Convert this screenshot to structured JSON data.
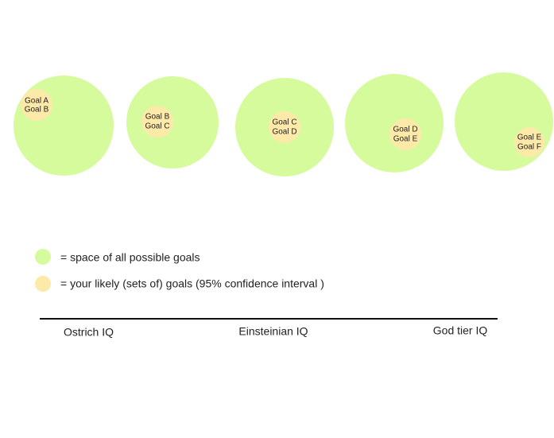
{
  "circles": [
    {
      "labels": [
        "Goal A",
        "Goal B"
      ]
    },
    {
      "labels": [
        "Goal B",
        "Goal C"
      ]
    },
    {
      "labels": [
        "Goal C",
        "Goal D"
      ]
    },
    {
      "labels": [
        "Goal D",
        "Goal E"
      ]
    },
    {
      "labels": [
        "Goal E",
        "Goal F"
      ]
    }
  ],
  "legend": [
    "= space of all possible goals",
    "= your likely (sets of) goals (95% confidence interval )"
  ],
  "axis": {
    "labels": [
      "Ostrich IQ",
      "Einsteinian IQ",
      "God tier IQ"
    ]
  }
}
